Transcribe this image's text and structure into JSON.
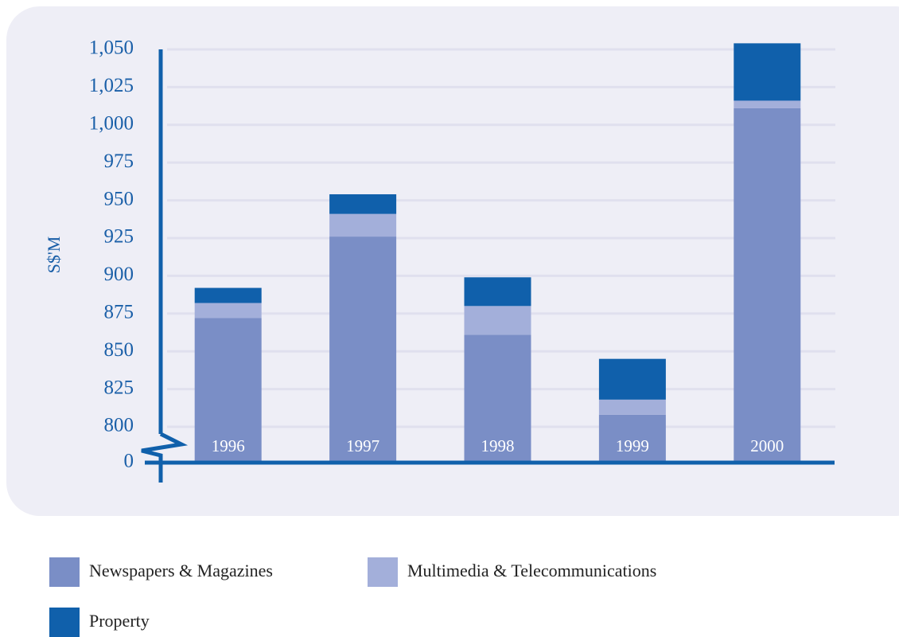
{
  "chart_data": {
    "type": "stacked_bar",
    "y_label": "S$'M",
    "categories": [
      "1996",
      "1997",
      "1998",
      "1999",
      "2000"
    ],
    "series": [
      {
        "name": "Newspapers & Magazines",
        "color": "#7a8ec6",
        "values": [
          872,
          926,
          861,
          808,
          1011
        ]
      },
      {
        "name": "Multimedia & Telecommunications",
        "color": "#a3afda",
        "values": [
          10,
          15,
          19,
          10,
          5
        ]
      },
      {
        "name": "Property",
        "color": "#1060ab",
        "values": [
          10,
          13,
          19,
          27,
          38
        ]
      }
    ],
    "ylim": [
      0,
      1060
    ],
    "axis_break": [
      0,
      800
    ],
    "yticks": [
      0,
      800,
      825,
      850,
      875,
      900,
      925,
      950,
      975,
      {
        "value": 1000,
        "label": "1,000"
      },
      {
        "value": 1025,
        "label": "1,025"
      },
      {
        "value": 1050,
        "label": "1,050"
      }
    ],
    "grid": true
  }
}
